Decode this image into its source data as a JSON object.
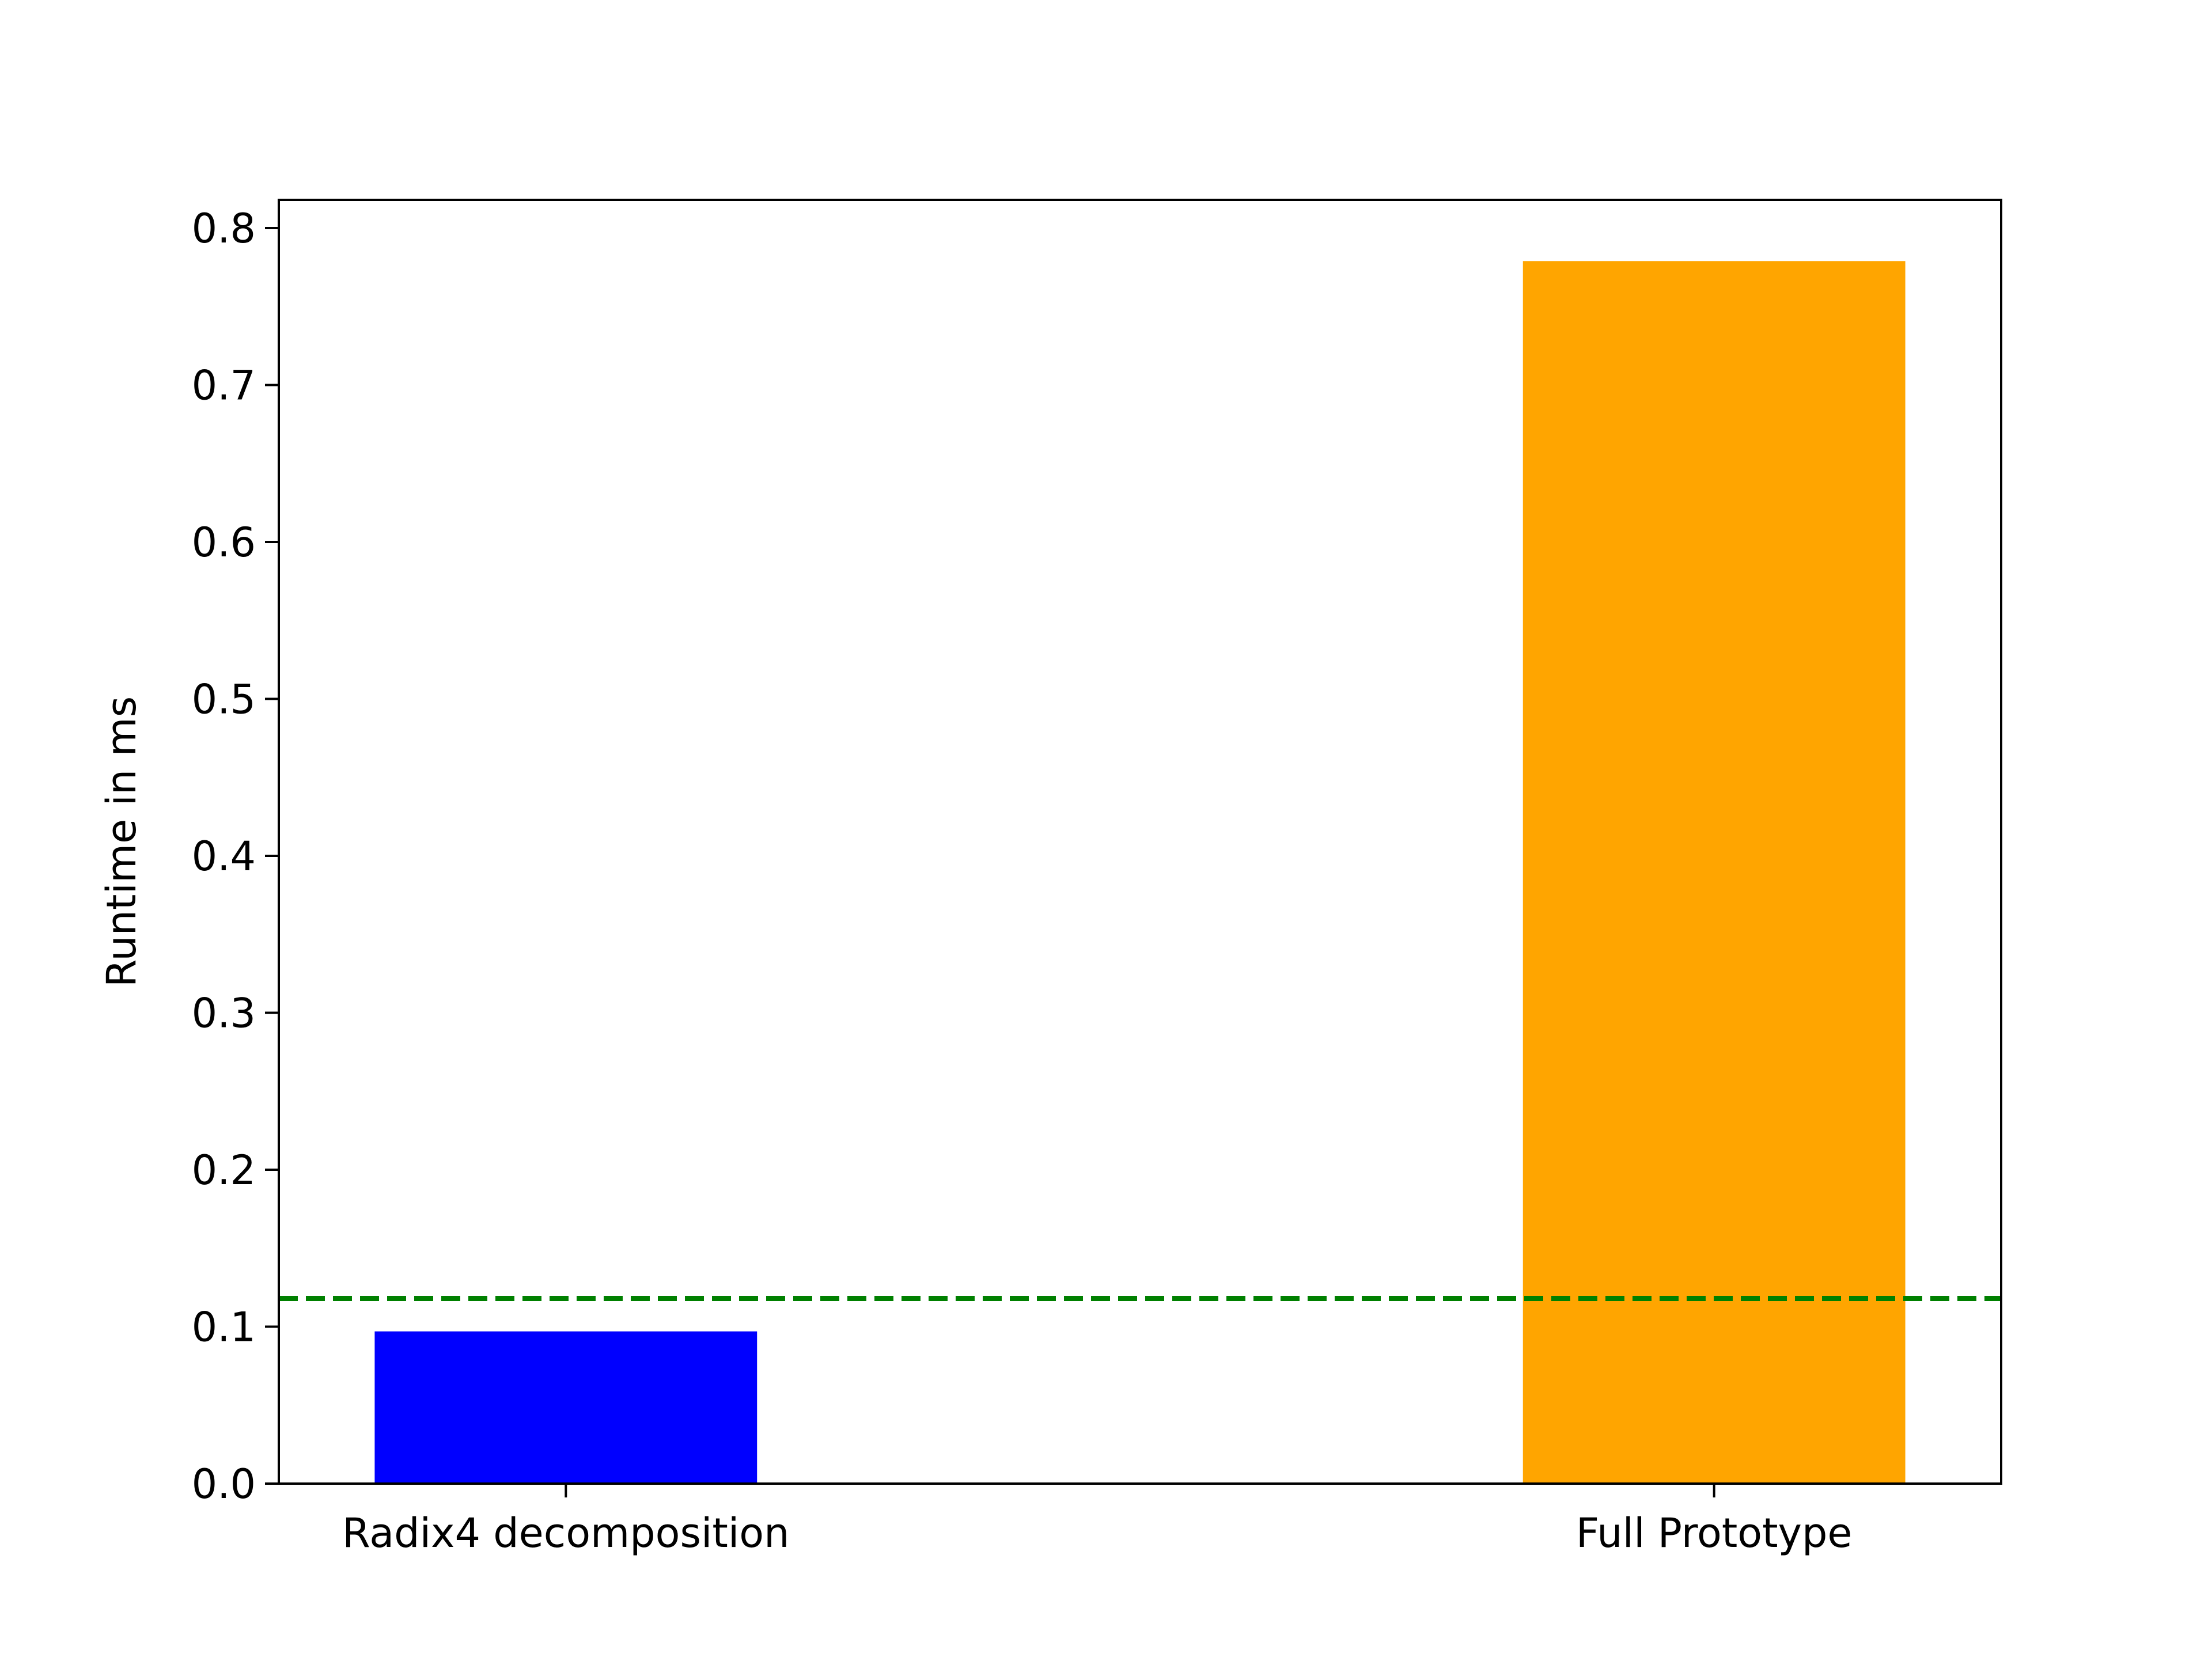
{
  "chart_data": {
    "type": "bar",
    "title": "",
    "xlabel": "",
    "ylabel": "Runtime in ms",
    "categories": [
      "Radix4 decomposition",
      "Full Prototype"
    ],
    "values": [
      0.097,
      0.779
    ],
    "colors": [
      "#0000ff",
      "#ffa500"
    ],
    "ylim": [
      0,
      0.818
    ],
    "yticks": [
      0.0,
      0.1,
      0.2,
      0.3,
      0.4,
      0.5,
      0.6,
      0.7,
      0.8
    ],
    "ytick_labels": [
      "0.0",
      "0.1",
      "0.2",
      "0.3",
      "0.4",
      "0.5",
      "0.6",
      "0.7",
      "0.8"
    ],
    "reference_line": {
      "value": 0.118,
      "color": "#008000",
      "style": "dashed"
    },
    "grid": false,
    "legend": "none"
  }
}
